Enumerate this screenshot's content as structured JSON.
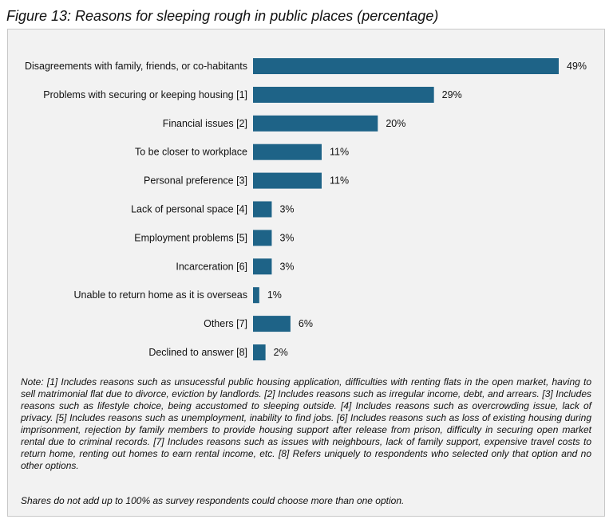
{
  "chart_data": {
    "type": "bar",
    "orientation": "horizontal",
    "title": "Figure 13: Reasons for sleeping rough in public places (percentage)",
    "categories": [
      "Disagreements with family, friends, or co-habitants",
      "Problems with securing or keeping housing [1]",
      "Financial issues [2]",
      "To be closer to workplace",
      "Personal preference [3]",
      "Lack of personal space [4]",
      "Employment problems [5]",
      "Incarceration [6]",
      "Unable to return home as it is overseas",
      "Others [7]",
      "Declined to answer [8]"
    ],
    "values": [
      49,
      29,
      20,
      11,
      11,
      3,
      3,
      3,
      1,
      6,
      2
    ],
    "value_labels": [
      "49%",
      "29%",
      "20%",
      "11%",
      "11%",
      "3%",
      "3%",
      "3%",
      "1%",
      "6%",
      "2%"
    ],
    "xlim": [
      0,
      49
    ],
    "bar_color": "#1e6387",
    "grid": false,
    "legend": "none"
  },
  "notes": {
    "main": "Note: [1] Includes reasons such as unsucessful public housing application, difficulties with renting flats in the open market, having to sell matrimonial flat due to divorce, eviction by landlords. [2] Includes reasons such as irregular income, debt, and arrears. [3] Includes reasons such as lifestyle choice, being accustomed to sleeping outside. [4] Includes reasons such as overcrowding issue, lack of privacy. [5] Includes reasons such as unemployment, inability to find jobs. [6] Includes reasons such as loss of existing housing during imprisonment, rejection by family members to provide housing support after release from prison, difficulty in securing open market rental due to criminal records. [7] Includes reasons such as issues with neighbours, lack of family support, expensive travel costs to return home, renting out homes to earn rental income, etc. [8] Refers uniquely to respondents who selected only that option and no other options.",
    "shares": "Shares do not add up to 100% as survey respondents could choose more than one option."
  }
}
